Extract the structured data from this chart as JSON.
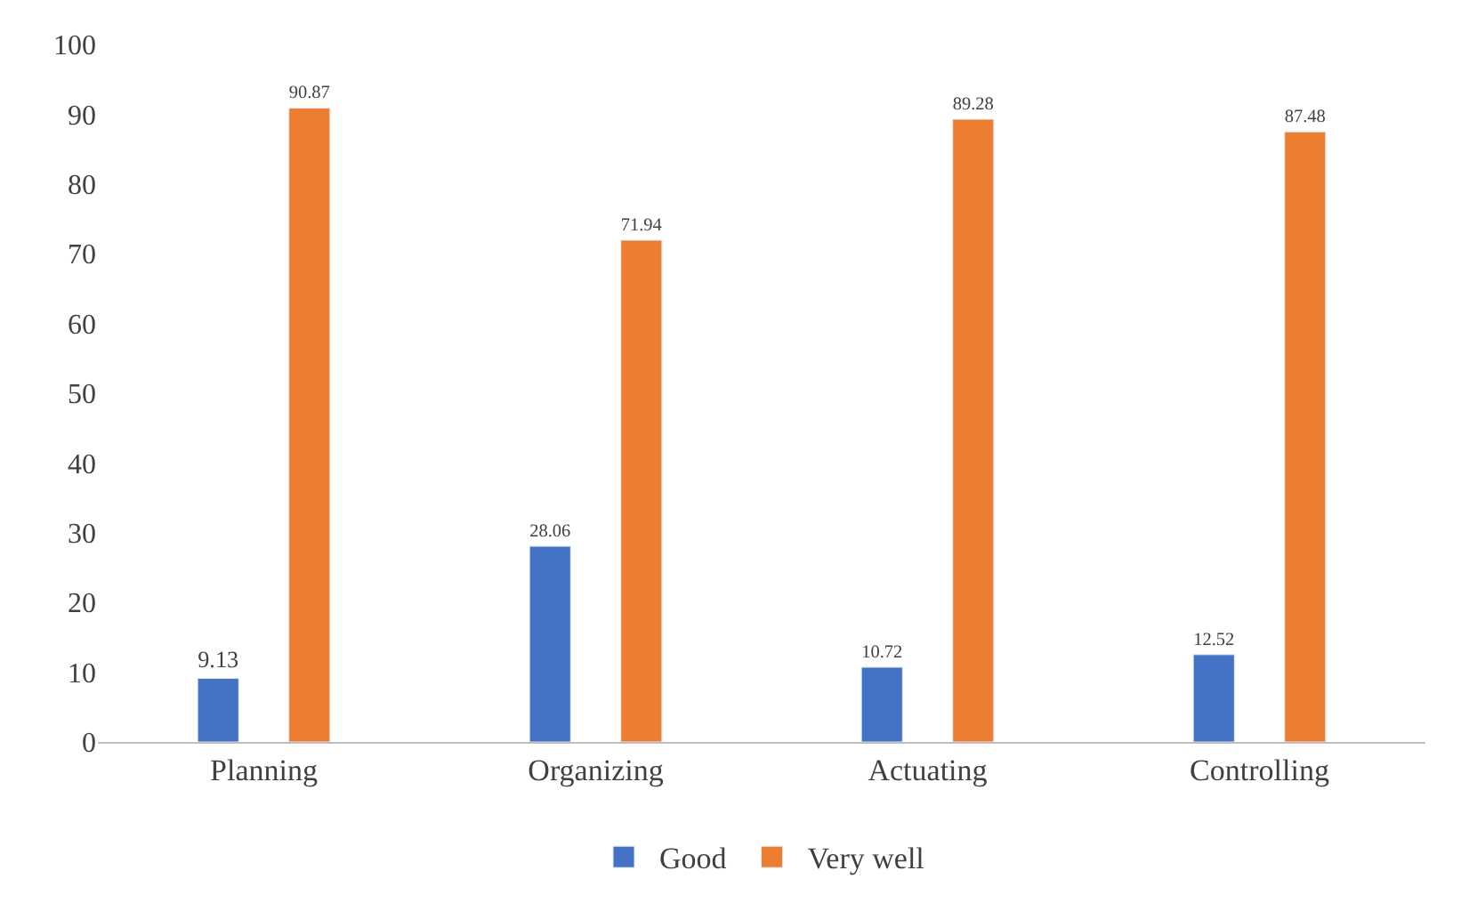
{
  "chart_data": {
    "type": "bar",
    "categories": [
      "Planning",
      "Organizing",
      "Actuating",
      "Controlling"
    ],
    "series": [
      {
        "name": "Good",
        "color": "#4472c4",
        "values": [
          9.13,
          28.06,
          10.72,
          12.52
        ]
      },
      {
        "name": "Very well",
        "color": "#ed7d31",
        "values": [
          90.87,
          71.94,
          89.28,
          87.48
        ]
      }
    ],
    "ylim": [
      0,
      100
    ],
    "yticks": [
      0,
      10,
      20,
      30,
      40,
      50,
      60,
      70,
      80,
      90,
      100
    ],
    "grid": false,
    "legend": "bottom",
    "data_labels": true
  }
}
